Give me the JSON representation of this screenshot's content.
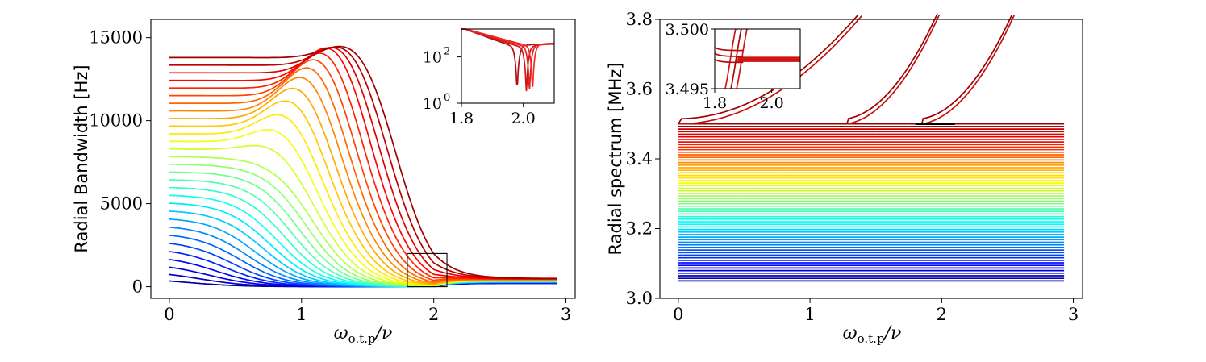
{
  "chart_data": [
    {
      "type": "line",
      "name": "left-panel",
      "ylabel": "Radial Bandwidth [Hz]",
      "xlabel": "ω_o.t.p/ν",
      "xlabel_main": "ω",
      "xlabel_sub": "o.t.p",
      "xlabel_tail": "/ν",
      "xlim": [
        -0.14,
        3.07
      ],
      "ylim": [
        -700,
        16100
      ],
      "xticks": [
        0,
        1,
        2,
        3
      ],
      "xtick_labels": [
        "0",
        "1",
        "2",
        "3"
      ],
      "yticks": [
        0,
        5000,
        10000,
        15000
      ],
      "ytick_labels": [
        "0",
        "5000",
        "10000",
        "15000"
      ],
      "series_count": 30,
      "x_range": [
        0,
        2.93
      ],
      "initial_values": [
        500,
        13800
      ],
      "peak_value": 15100,
      "peak_x": 1.25,
      "drop_center_range": [
        0.15,
        1.75
      ],
      "post_dip_plateau": [
        200,
        500
      ],
      "dip_x": 2.0,
      "zoom_box": {
        "x": [
          1.8,
          2.1
        ],
        "y": [
          0,
          2000
        ]
      },
      "inset": {
        "xlim": [
          1.8,
          2.1
        ],
        "ylim_log": [
          1,
          1600
        ],
        "xticks": [
          1.8,
          2.0
        ],
        "xtick_labels": [
          "1.8",
          "2.0"
        ],
        "yticks": [
          1,
          100
        ],
        "ytick_labels_base": [
          "10",
          "10"
        ],
        "ytick_labels_exp": [
          "0",
          "2"
        ],
        "series_count": 4,
        "dip_x": [
          1.98,
          2.01,
          2.02,
          2.03
        ],
        "dip_min": [
          6,
          3,
          2,
          5
        ]
      }
    },
    {
      "type": "line",
      "name": "right-panel",
      "ylabel": "Radial spectrum [MHz]",
      "xlabel": "ω_o.t.p/ν",
      "xlabel_main": "ω",
      "xlabel_sub": "o.t.p",
      "xlabel_tail": "/ν",
      "xlim": [
        -0.14,
        3.07
      ],
      "ylim": [
        3.0,
        3.8
      ],
      "xticks": [
        0,
        1,
        2,
        3
      ],
      "xtick_labels": [
        "0",
        "1",
        "2",
        "3"
      ],
      "yticks": [
        3.0,
        3.2,
        3.4,
        3.6,
        3.8
      ],
      "ytick_labels": [
        "3.0",
        "3.2",
        "3.4",
        "3.6",
        "3.8"
      ],
      "flat_series_count": 62,
      "flat_range": [
        3.05,
        3.5
      ],
      "x_range": [
        0,
        2.93
      ],
      "rising_branches": [
        {
          "start_x": 0.0,
          "start_y": 3.5
        },
        {
          "start_x": 1.28,
          "start_y": 3.5
        },
        {
          "start_x": 1.85,
          "start_y": 3.5
        }
      ],
      "marker": {
        "x": [
          1.8,
          2.1
        ],
        "y": 3.4997
      },
      "inset": {
        "xlim": [
          1.8,
          2.1
        ],
        "ylim": [
          3.495,
          3.5
        ],
        "xticks": [
          1.8,
          2.0
        ],
        "xtick_labels": [
          "1.8",
          "2.0"
        ],
        "yticks": [
          3.495,
          3.5
        ],
        "ytick_labels": [
          "3.495",
          "3.500"
        ]
      }
    }
  ]
}
